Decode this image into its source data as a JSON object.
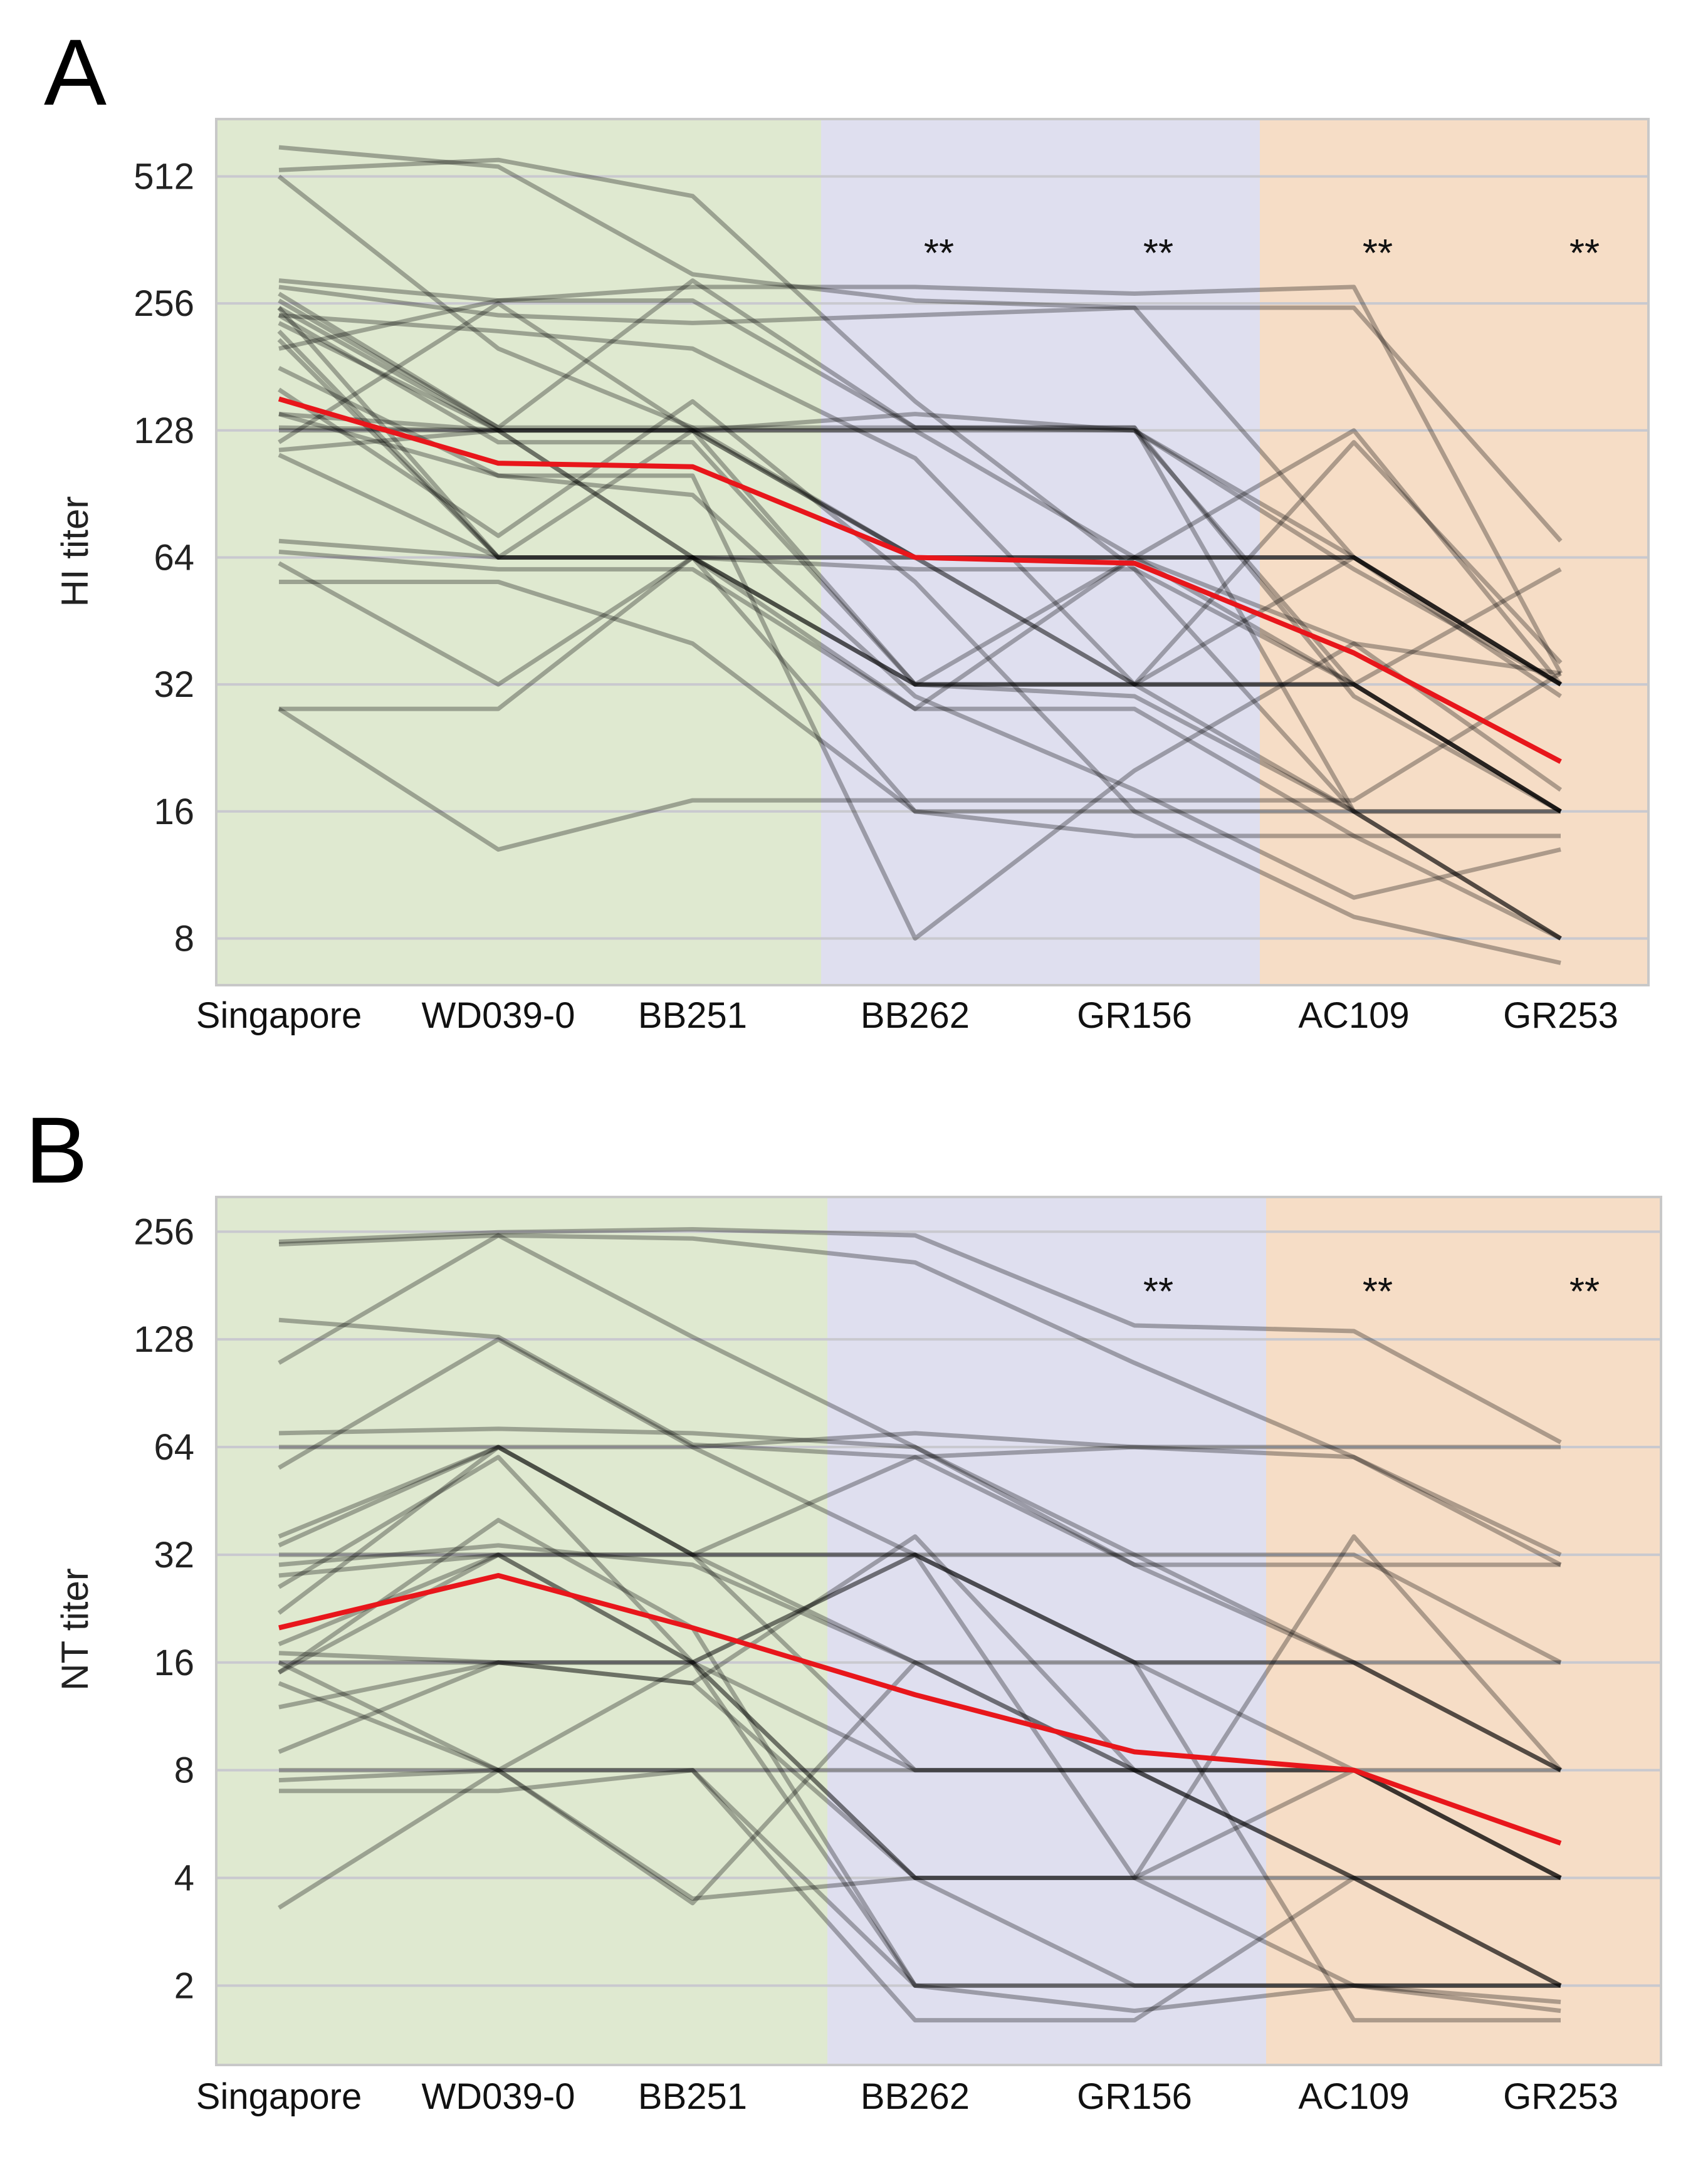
{
  "panels": [
    {
      "letter": "A",
      "ylabel": "HI titer",
      "significance": {
        "label": "**",
        "at": [
          "BB262",
          "GR156",
          "AC109",
          "GR253"
        ]
      },
      "colors": {
        "red": "#e8161b",
        "green": "#dfe9d0",
        "blue": "#dfdfef",
        "orange": "#f6ddc6",
        "grid": "#c9c9cf",
        "lines": "#000000"
      }
    },
    {
      "letter": "B",
      "ylabel": "NT titer",
      "significance": {
        "label": "**",
        "at": [
          "GR156",
          "AC109",
          "GR253"
        ]
      },
      "colors": {
        "red": "#e8161b",
        "green": "#dfe9d0",
        "blue": "#dfdfef",
        "orange": "#f6ddc6",
        "grid": "#c9c9cf",
        "lines": "#000000"
      }
    }
  ],
  "chart_data": [
    {
      "type": "line",
      "title": "A",
      "xlabel": "",
      "ylabel": "HI titer",
      "yscale": "log2",
      "ylim": [
        6.2,
        700
      ],
      "yticks": [
        8,
        16,
        32,
        64,
        128,
        256,
        512
      ],
      "categories": [
        "Singapore",
        "WD039-0",
        "BB251",
        "BB262",
        "GR156",
        "AC109",
        "GR253"
      ],
      "shaded_groups": [
        {
          "color": "green",
          "from": "Singapore",
          "to": "BB251"
        },
        {
          "color": "blue",
          "from": "BB262",
          "to": "GR156"
        },
        {
          "color": "orange",
          "from": "AC109",
          "to": "GR253"
        }
      ],
      "mean": {
        "name": "mean",
        "values": [
          152,
          107,
          105,
          64,
          62,
          38,
          21
        ]
      },
      "individuals": [
        [
          600,
          540,
          300,
          260,
          250,
          64,
          32
        ],
        [
          530,
          560,
          460,
          150,
          60,
          32,
          16
        ],
        [
          512,
          200,
          130,
          64,
          32,
          16,
          8
        ],
        [
          290,
          260,
          280,
          280,
          270,
          280,
          34
        ],
        [
          280,
          240,
          230,
          240,
          250,
          250,
          70
        ],
        [
          270,
          130,
          290,
          130,
          130,
          30,
          16
        ],
        [
          260,
          130,
          130,
          130,
          128,
          64,
          32
        ],
        [
          250,
          128,
          128,
          64,
          64,
          64,
          32
        ],
        [
          240,
          120,
          120,
          32,
          30,
          16,
          16
        ],
        [
          230,
          128,
          64,
          32,
          32,
          32,
          16
        ],
        [
          220,
          64,
          64,
          64,
          64,
          64,
          30
        ],
        [
          210,
          64,
          128,
          128,
          64,
          32,
          16
        ],
        [
          200,
          260,
          260,
          130,
          130,
          16,
          8
        ],
        [
          140,
          128,
          128,
          140,
          128,
          60,
          32
        ],
        [
          130,
          128,
          128,
          128,
          128,
          32,
          16
        ],
        [
          128,
          128,
          64,
          60,
          60,
          16,
          8
        ],
        [
          120,
          256,
          128,
          64,
          32,
          64,
          32
        ],
        [
          115,
          128,
          128,
          32,
          64,
          128,
          32
        ],
        [
          112,
          64,
          64,
          32,
          32,
          32,
          16
        ],
        [
          70,
          64,
          64,
          64,
          64,
          64,
          32
        ],
        [
          66,
          60,
          60,
          28,
          28,
          14,
          8
        ],
        [
          62,
          32,
          64,
          16,
          16,
          16,
          16
        ],
        [
          56,
          56,
          40,
          16,
          14,
          14,
          14
        ],
        [
          28,
          28,
          64,
          32,
          32,
          32,
          60
        ],
        [
          28,
          13,
          17,
          17,
          17,
          17,
          34
        ],
        [
          180,
          100,
          90,
          30,
          18,
          10,
          13
        ],
        [
          140,
          100,
          100,
          8,
          20,
          40,
          18
        ],
        [
          240,
          220,
          200,
          110,
          32,
          120,
          36
        ],
        [
          160,
          72,
          150,
          56,
          16,
          9,
          7
        ],
        [
          250,
          64,
          64,
          28,
          64,
          40,
          34
        ]
      ]
    },
    {
      "type": "line",
      "title": "B",
      "xlabel": "",
      "ylabel": "NT titer",
      "yscale": "log2",
      "ylim": [
        1.2,
        320
      ],
      "yticks": [
        2,
        4,
        8,
        16,
        32,
        64,
        128,
        256
      ],
      "categories": [
        "Singapore",
        "WD039-0",
        "BB251",
        "BB262",
        "GR156",
        "AC109",
        "GR253"
      ],
      "shaded_groups": [
        {
          "color": "green",
          "from": "Singapore",
          "to": "BB251"
        },
        {
          "color": "blue",
          "from": "BB262",
          "to": "GR156"
        },
        {
          "color": "orange",
          "from": "AC109",
          "to": "GR253"
        }
      ],
      "mean": {
        "name": "mean",
        "values": [
          20,
          28,
          20,
          13,
          9,
          8,
          5
        ]
      },
      "individuals": [
        [
          236,
          250,
          245,
          210,
          110,
          60,
          32
        ],
        [
          240,
          255,
          260,
          250,
          140,
          135,
          66
        ],
        [
          145,
          130,
          65,
          60,
          64,
          64,
          64
        ],
        [
          110,
          250,
          130,
          64,
          30,
          30,
          30
        ],
        [
          70,
          72,
          70,
          64,
          32,
          16,
          16
        ],
        [
          64,
          64,
          64,
          70,
          64,
          60,
          30
        ],
        [
          56,
          128,
          64,
          32,
          16,
          8,
          4
        ],
        [
          36,
          64,
          32,
          16,
          8,
          4,
          2
        ],
        [
          34,
          64,
          32,
          32,
          32,
          32,
          16
        ],
        [
          32,
          32,
          32,
          32,
          16,
          16,
          8
        ],
        [
          30,
          34,
          30,
          16,
          8,
          8,
          8
        ],
        [
          28,
          32,
          32,
          8,
          8,
          4,
          4
        ],
        [
          26,
          60,
          16,
          4,
          4,
          2,
          2
        ],
        [
          18,
          32,
          16,
          32,
          4,
          4,
          2
        ],
        [
          17,
          16,
          16,
          8,
          8,
          8,
          4
        ],
        [
          16,
          16,
          14,
          4,
          2,
          2,
          2
        ],
        [
          15,
          32,
          16,
          32,
          16,
          16,
          8
        ],
        [
          14,
          8,
          16,
          4,
          4,
          36,
          8
        ],
        [
          9,
          16,
          16,
          2,
          2,
          2,
          2
        ],
        [
          8,
          8,
          8,
          8,
          8,
          8,
          4
        ],
        [
          7.5,
          8,
          8,
          2,
          2,
          2,
          1.8
        ],
        [
          7,
          7,
          8,
          1.6,
          1.6,
          4,
          4
        ],
        [
          3.3,
          8,
          3.5,
          4,
          4,
          8,
          4
        ],
        [
          16,
          8,
          3.4,
          16,
          16,
          1.6,
          1.6
        ],
        [
          22,
          64,
          32,
          60,
          30,
          16,
          8
        ],
        [
          15,
          40,
          20,
          2,
          1.7,
          2,
          1.7
        ],
        [
          12,
          16,
          14,
          36,
          8,
          4,
          2
        ]
      ]
    }
  ]
}
